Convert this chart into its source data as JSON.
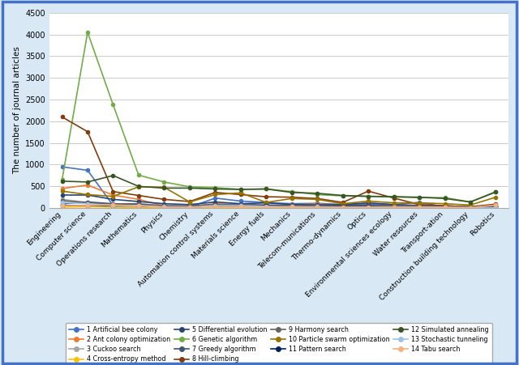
{
  "categories": [
    "Engineering",
    "Computer science",
    "Operations research",
    "Mathematics",
    "Physics",
    "Chemistry",
    "Automation control systems",
    "Materials science",
    "Energy fuels",
    "Mechanics",
    "Telecom-munications",
    "Thermo-dynamics",
    "Optics",
    "Environmental sciences ecology",
    "Water resources",
    "Transport-ation",
    "Construction building technology",
    "Robotics"
  ],
  "series": [
    {
      "label": "1 Artificial bee colony",
      "color": "#4472C4",
      "marker": "o",
      "linestyle": "-",
      "linewidth": 1.2,
      "markersize": 3,
      "values": [
        950,
        870,
        60,
        50,
        30,
        20,
        230,
        160,
        130,
        100,
        110,
        80,
        90,
        80,
        130,
        30,
        20,
        50
      ]
    },
    {
      "label": "2 Ant colony optimization",
      "color": "#ED7D31",
      "marker": "o",
      "linestyle": "-",
      "linewidth": 1.2,
      "markersize": 3,
      "values": [
        450,
        530,
        300,
        200,
        50,
        40,
        100,
        80,
        50,
        70,
        100,
        60,
        50,
        50,
        50,
        50,
        20,
        30
      ]
    },
    {
      "label": "3 Cuckoo search",
      "color": "#A5A5A5",
      "marker": "o",
      "linestyle": "-",
      "linewidth": 1.2,
      "markersize": 3,
      "values": [
        200,
        130,
        70,
        60,
        30,
        30,
        60,
        60,
        60,
        60,
        50,
        50,
        50,
        50,
        30,
        20,
        10,
        20
      ]
    },
    {
      "label": "4 Cross-entropy method",
      "color": "#FFC000",
      "marker": "o",
      "linestyle": "-",
      "linewidth": 1.2,
      "markersize": 3,
      "values": [
        20,
        30,
        20,
        10,
        10,
        5,
        10,
        10,
        5,
        5,
        5,
        5,
        5,
        5,
        5,
        5,
        5,
        5
      ]
    },
    {
      "label": "5 Differential evolution",
      "color": "#264478",
      "marker": "o",
      "linestyle": "-",
      "linewidth": 1.2,
      "markersize": 3,
      "values": [
        300,
        300,
        200,
        150,
        100,
        80,
        140,
        100,
        120,
        80,
        80,
        80,
        120,
        80,
        60,
        50,
        30,
        60
      ]
    },
    {
      "label": "6 Genetic algorithm",
      "color": "#70AD47",
      "marker": "o",
      "linestyle": "-",
      "linewidth": 1.2,
      "markersize": 3,
      "values": [
        650,
        4050,
        2380,
        760,
        600,
        490,
        470,
        430,
        440,
        380,
        310,
        280,
        270,
        260,
        240,
        240,
        140,
        380
      ]
    },
    {
      "label": "7 Greedy algorithm",
      "color": "#44546A",
      "marker": "o",
      "linestyle": "-",
      "linewidth": 1.2,
      "markersize": 3,
      "values": [
        100,
        140,
        100,
        80,
        50,
        50,
        80,
        80,
        70,
        60,
        80,
        60,
        60,
        40,
        30,
        30,
        20,
        30
      ]
    },
    {
      "label": "8 Hill-climbing",
      "color": "#843C0C",
      "marker": "o",
      "linestyle": "-",
      "linewidth": 1.2,
      "markersize": 3,
      "values": [
        2100,
        1760,
        380,
        290,
        200,
        150,
        360,
        310,
        260,
        250,
        220,
        130,
        390,
        230,
        80,
        50,
        30,
        90
      ]
    },
    {
      "label": "9 Harmony search",
      "color": "#636363",
      "marker": "o",
      "linestyle": "-",
      "linewidth": 1.2,
      "markersize": 3,
      "values": [
        170,
        120,
        90,
        100,
        50,
        40,
        80,
        70,
        60,
        60,
        50,
        50,
        50,
        60,
        50,
        30,
        20,
        20
      ]
    },
    {
      "label": "10 Particle swarm optimization",
      "color": "#997300",
      "marker": "o",
      "linestyle": "-",
      "linewidth": 1.2,
      "markersize": 3,
      "values": [
        390,
        310,
        270,
        490,
        480,
        140,
        310,
        350,
        130,
        220,
        200,
        100,
        160,
        120,
        120,
        100,
        70,
        250
      ]
    },
    {
      "label": "11 Pattern search",
      "color": "#002060",
      "marker": "o",
      "linestyle": "-",
      "linewidth": 1.2,
      "markersize": 3,
      "values": [
        60,
        60,
        50,
        50,
        30,
        20,
        50,
        50,
        50,
        40,
        30,
        30,
        30,
        20,
        20,
        10,
        10,
        10
      ]
    },
    {
      "label": "12 Simulated annealing",
      "color": "#375623",
      "marker": "o",
      "linestyle": "-",
      "linewidth": 1.2,
      "markersize": 3,
      "values": [
        620,
        600,
        750,
        500,
        460,
        460,
        440,
        430,
        440,
        360,
        340,
        290,
        270,
        260,
        250,
        220,
        140,
        370
      ]
    },
    {
      "label": "13 Stochastic tunneling",
      "color": "#9DC3E6",
      "marker": "o",
      "linestyle": "-",
      "linewidth": 1.2,
      "markersize": 3,
      "values": [
        130,
        100,
        60,
        60,
        30,
        20,
        60,
        60,
        40,
        30,
        30,
        20,
        20,
        20,
        20,
        15,
        10,
        10
      ]
    },
    {
      "label": "14 Tabu search",
      "color": "#F4B183",
      "marker": "o",
      "linestyle": "-",
      "linewidth": 1.2,
      "markersize": 3,
      "values": [
        50,
        60,
        70,
        50,
        20,
        20,
        30,
        30,
        20,
        30,
        20,
        20,
        20,
        20,
        20,
        20,
        10,
        70
      ]
    }
  ],
  "ylabel": "The number of journal articles",
  "ylim": [
    0,
    4500
  ],
  "yticks": [
    0,
    500,
    1000,
    1500,
    2000,
    2500,
    3000,
    3500,
    4000,
    4500
  ],
  "figure_facecolor": "#D9E8F5",
  "axes_facecolor": "#FFFFFF",
  "border_color": "#4472C4",
  "legend_ncol": 4,
  "legend_fontsize": 5.8,
  "xlabel_fontsize": 6.5,
  "ylabel_fontsize": 7.5,
  "ytick_fontsize": 7.0
}
